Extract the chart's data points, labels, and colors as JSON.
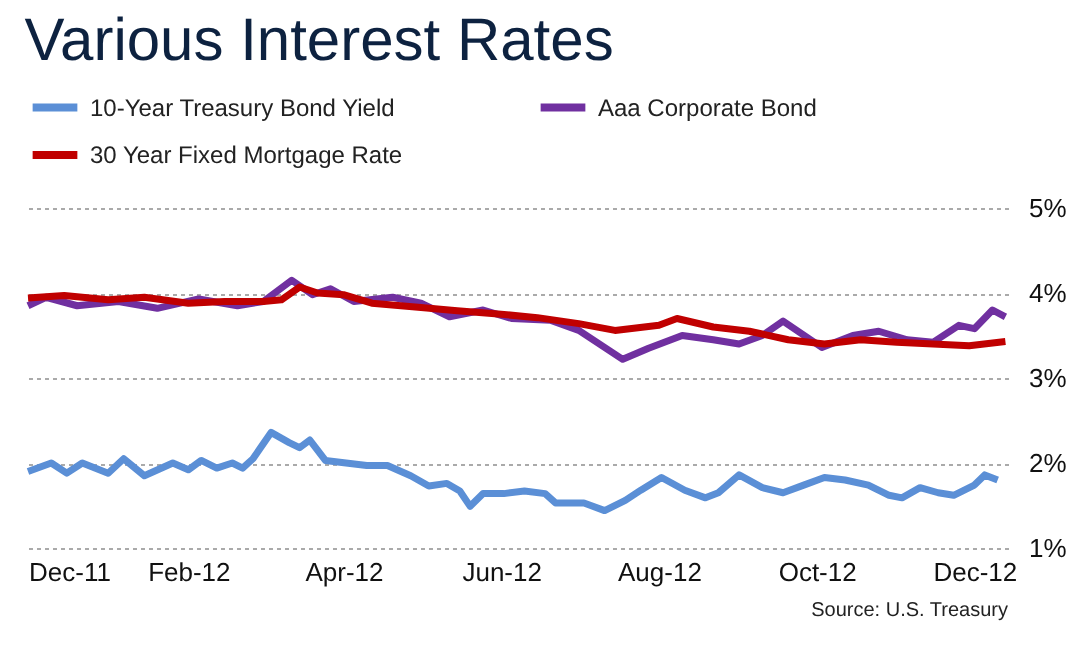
{
  "chart_data": {
    "type": "line",
    "title": "Various Interest Rates",
    "annotations": [
      "Source:  U.S. Treasury"
    ],
    "xlim": [
      "2011-12-01",
      "2012-12-14"
    ],
    "xticks": [
      {
        "value": "2011-12-01",
        "label": "Dec-11"
      },
      {
        "value": "2012-02-01",
        "label": "Feb-12"
      },
      {
        "value": "2012-04-01",
        "label": "Apr-12"
      },
      {
        "value": "2012-06-01",
        "label": "Jun-12"
      },
      {
        "value": "2012-08-01",
        "label": "Aug-12"
      },
      {
        "value": "2012-10-01",
        "label": "Oct-12"
      },
      {
        "value": "2012-12-01",
        "label": "Dec-12"
      }
    ],
    "ylim": [
      1,
      5
    ],
    "yticks": [
      {
        "value": 1,
        "label": "1%"
      },
      {
        "value": 2,
        "label": "2%"
      },
      {
        "value": 3,
        "label": "3%"
      },
      {
        "value": 4,
        "label": "4%"
      },
      {
        "value": 5,
        "label": "5%"
      }
    ],
    "grid": "y",
    "legend": "top",
    "marker": "none",
    "line_style": "solid",
    "series": [
      {
        "name": "10-Year Treasury Bond Yield",
        "color": "#5b8fd6",
        "x": [
          "2011-12-01",
          "2011-12-10",
          "2011-12-16",
          "2011-12-22",
          "2012-01-01",
          "2012-01-07",
          "2012-01-15",
          "2012-01-26",
          "2012-02-01",
          "2012-02-06",
          "2012-02-12",
          "2012-02-18",
          "2012-02-22",
          "2012-02-26",
          "2012-03-04",
          "2012-03-11",
          "2012-03-15",
          "2012-03-19",
          "2012-03-25",
          "2012-04-02",
          "2012-04-10",
          "2012-04-18",
          "2012-04-27",
          "2012-05-04",
          "2012-05-11",
          "2012-05-16",
          "2012-05-20",
          "2012-05-25",
          "2012-06-02",
          "2012-06-10",
          "2012-06-18",
          "2012-06-22",
          "2012-07-03",
          "2012-07-11",
          "2012-07-19",
          "2012-07-25",
          "2012-08-02",
          "2012-08-11",
          "2012-08-19",
          "2012-08-24",
          "2012-09-01",
          "2012-09-10",
          "2012-09-18",
          "2012-09-26",
          "2012-10-04",
          "2012-10-12",
          "2012-10-21",
          "2012-10-29",
          "2012-11-03",
          "2012-11-10",
          "2012-11-17",
          "2012-11-23",
          "2012-12-01",
          "2012-12-05",
          "2012-12-10"
        ],
        "values": [
          1.9,
          2.0,
          1.88,
          2.0,
          1.88,
          2.05,
          1.85,
          2.0,
          1.92,
          2.03,
          1.94,
          2.0,
          1.94,
          2.05,
          2.36,
          2.24,
          2.18,
          2.27,
          2.03,
          2.0,
          1.97,
          1.97,
          1.85,
          1.73,
          1.76,
          1.67,
          1.49,
          1.64,
          1.64,
          1.67,
          1.64,
          1.53,
          1.53,
          1.44,
          1.56,
          1.68,
          1.83,
          1.68,
          1.59,
          1.65,
          1.86,
          1.71,
          1.65,
          1.74,
          1.83,
          1.8,
          1.74,
          1.62,
          1.59,
          1.71,
          1.65,
          1.62,
          1.74,
          1.86,
          1.8
        ]
      },
      {
        "name": "Aaa Corporate Bond",
        "color": "#7030a0",
        "x": [
          "2011-12-01",
          "2011-12-08",
          "2011-12-20",
          "2012-01-05",
          "2012-01-20",
          "2012-02-05",
          "2012-02-20",
          "2012-03-01",
          "2012-03-12",
          "2012-03-20",
          "2012-03-27",
          "2012-04-05",
          "2012-04-20",
          "2012-05-01",
          "2012-05-12",
          "2012-05-25",
          "2012-06-05",
          "2012-06-20",
          "2012-07-01",
          "2012-07-18",
          "2012-07-28",
          "2012-08-10",
          "2012-08-22",
          "2012-09-01",
          "2012-09-10",
          "2012-09-18",
          "2012-10-03",
          "2012-10-15",
          "2012-10-25",
          "2012-11-05",
          "2012-11-15",
          "2012-11-25",
          "2012-12-01",
          "2012-12-08",
          "2012-12-13"
        ],
        "values": [
          3.85,
          3.95,
          3.85,
          3.9,
          3.82,
          3.93,
          3.85,
          3.9,
          4.15,
          3.98,
          4.05,
          3.9,
          3.95,
          3.88,
          3.72,
          3.8,
          3.7,
          3.68,
          3.56,
          3.22,
          3.35,
          3.5,
          3.45,
          3.4,
          3.5,
          3.67,
          3.36,
          3.5,
          3.55,
          3.45,
          3.42,
          3.62,
          3.58,
          3.8,
          3.72
        ]
      },
      {
        "name": "30 Year Fixed Mortgage Rate",
        "color": "#c00000",
        "x": [
          "2011-12-01",
          "2011-12-15",
          "2012-01-01",
          "2012-01-15",
          "2012-02-01",
          "2012-02-15",
          "2012-03-01",
          "2012-03-08",
          "2012-03-15",
          "2012-03-22",
          "2012-04-01",
          "2012-04-12",
          "2012-05-01",
          "2012-05-15",
          "2012-06-01",
          "2012-06-15",
          "2012-07-01",
          "2012-07-15",
          "2012-08-01",
          "2012-08-08",
          "2012-08-22",
          "2012-09-05",
          "2012-09-20",
          "2012-10-04",
          "2012-10-18",
          "2012-11-01",
          "2012-11-15",
          "2012-11-29",
          "2012-12-13"
        ],
        "values": [
          3.94,
          3.97,
          3.92,
          3.95,
          3.88,
          3.9,
          3.9,
          3.92,
          4.07,
          4.0,
          3.98,
          3.88,
          3.83,
          3.79,
          3.75,
          3.71,
          3.64,
          3.56,
          3.62,
          3.7,
          3.6,
          3.55,
          3.45,
          3.4,
          3.45,
          3.42,
          3.4,
          3.38,
          3.43
        ]
      }
    ]
  }
}
